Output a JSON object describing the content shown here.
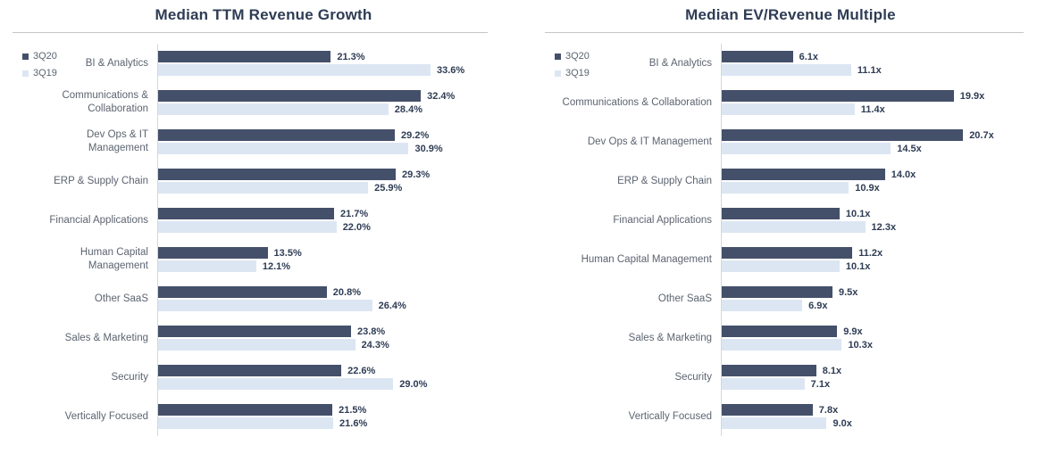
{
  "colors": {
    "bar_3q20": "#44506a",
    "bar_3q19": "#dce6f3",
    "title_text": "#2e3c54",
    "category_text": "#5c6470",
    "value_text": "#2e3c54",
    "legend_text": "#5c6470",
    "axis_line": "#d3d7dd",
    "title_rule": "#c4c6c9"
  },
  "chart_data": [
    {
      "type": "bar",
      "orientation": "horizontal",
      "title": "Median TTM Revenue Growth",
      "value_suffix": "%",
      "xmax": 45.5,
      "grid": false,
      "legend_position": "top-left",
      "categories": [
        "BI & Analytics",
        "Communications & Collaboration",
        "Dev Ops & IT Management",
        "ERP & Supply Chain",
        "Financial Applications",
        "Human Capital Management",
        "Other SaaS",
        "Sales & Marketing",
        "Security",
        "Vertically Focused"
      ],
      "series": [
        {
          "name": "3Q20",
          "values": [
            21.3,
            32.4,
            29.2,
            29.3,
            21.7,
            13.5,
            20.8,
            23.8,
            22.6,
            21.5
          ]
        },
        {
          "name": "3Q19",
          "values": [
            33.6,
            28.4,
            30.9,
            25.9,
            22.0,
            12.1,
            26.4,
            24.3,
            29.0,
            21.6
          ]
        }
      ]
    },
    {
      "type": "bar",
      "orientation": "horizontal",
      "title": "Median EV/Revenue Multiple",
      "value_suffix": "x",
      "xmax": 28.5,
      "grid": false,
      "legend_position": "top-left",
      "categories": [
        "BI & Analytics",
        "Communications & Collaboration",
        "Dev Ops & IT Management",
        "ERP & Supply Chain",
        "Financial Applications",
        "Human Capital Management",
        "Other SaaS",
        "Sales & Marketing",
        "Security",
        "Vertically Focused"
      ],
      "series": [
        {
          "name": "3Q20",
          "values": [
            6.1,
            19.9,
            20.7,
            14.0,
            10.1,
            11.2,
            9.5,
            9.9,
            8.1,
            7.8
          ]
        },
        {
          "name": "3Q19",
          "values": [
            11.1,
            11.4,
            14.5,
            10.9,
            12.3,
            10.1,
            6.9,
            10.3,
            7.1,
            9.0
          ]
        }
      ]
    }
  ]
}
